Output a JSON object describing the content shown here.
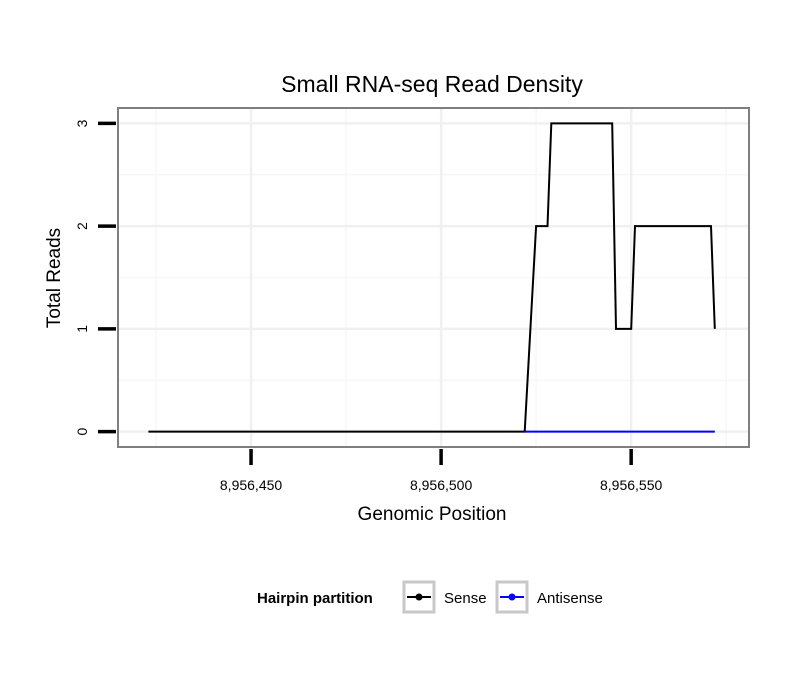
{
  "chart_data": {
    "type": "line",
    "title": "Small RNA-seq Read Density",
    "xlabel": "Genomic Position",
    "ylabel": "Total Reads",
    "xlim": [
      8956415,
      8956581
    ],
    "ylim": [
      -0.15,
      3.15
    ],
    "x_ticks": [
      8956450,
      8956500,
      8956550
    ],
    "x_tick_labels": [
      "8,956,450",
      "8,956,500",
      "8,956,550"
    ],
    "y_ticks": [
      0,
      1,
      2,
      3
    ],
    "y_tick_labels": [
      "0",
      "1",
      "2",
      "3"
    ],
    "grid": true,
    "legend": {
      "title": "Hairpin partition",
      "position": "bottom",
      "entries": [
        "Sense",
        "Antisense"
      ]
    },
    "series": [
      {
        "name": "Sense",
        "color": "#000000",
        "points": [
          [
            8956423,
            0
          ],
          [
            8956522,
            0
          ],
          [
            8956525,
            2
          ],
          [
            8956528,
            2
          ],
          [
            8956529,
            3
          ],
          [
            8956545,
            3
          ],
          [
            8956546,
            1
          ],
          [
            8956550,
            1
          ],
          [
            8956551,
            2
          ],
          [
            8956571,
            2
          ],
          [
            8956572,
            1
          ]
        ]
      },
      {
        "name": "Antisense",
        "color": "#0000ff",
        "points": [
          [
            8956522,
            0
          ],
          [
            8956572,
            0
          ]
        ]
      }
    ]
  }
}
